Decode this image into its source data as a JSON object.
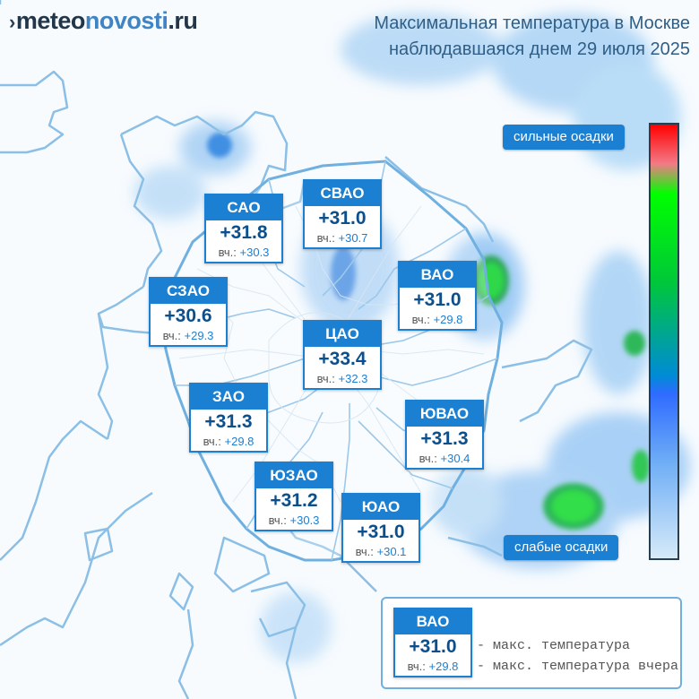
{
  "logo": {
    "mark": "›",
    "part1": "meteo",
    "part2": "novosti",
    "part3": ".ru"
  },
  "title": {
    "line1": "Максимальная температура в Москве",
    "line2": "наблюдавшаяся днем 29 июля 2025"
  },
  "yesterday_label": "вч.:",
  "districts": [
    {
      "name": "САО",
      "temp": "+31.8",
      "yesterday": "+30.3"
    },
    {
      "name": "СВАО",
      "temp": "+31.0",
      "yesterday": "+30.7"
    },
    {
      "name": "ВАО",
      "temp": "+31.0",
      "yesterday": "+29.8"
    },
    {
      "name": "СЗАО",
      "temp": "+30.6",
      "yesterday": "+29.3"
    },
    {
      "name": "ЦАО",
      "temp": "+33.4",
      "yesterday": "+32.3"
    },
    {
      "name": "ЗАО",
      "temp": "+31.3",
      "yesterday": "+29.8"
    },
    {
      "name": "ЮВАО",
      "temp": "+31.3",
      "yesterday": "+30.4"
    },
    {
      "name": "ЮЗАО",
      "temp": "+31.2",
      "yesterday": "+30.3"
    },
    {
      "name": "ЮАО",
      "temp": "+31.0",
      "yesterday": "+30.1"
    }
  ],
  "precip_scale": {
    "high_label": "сильные осадки",
    "low_label": "слабые осадки",
    "colors": [
      "#ff0000",
      "#f27a86",
      "#00ff00",
      "#00c838",
      "#008bd6",
      "#2f6bff",
      "#6faef6",
      "#d6eaf8"
    ]
  },
  "legend": {
    "example": {
      "name": "ВАО",
      "temp": "+31.0",
      "yesterday": "+29.8"
    },
    "max_temp_label": "- макс. температура",
    "max_temp_yesterday_label": "- макс. температура вчера"
  },
  "colors": {
    "accent": "#1b7fd2",
    "temp_text": "#0b4f8c",
    "boundary": "#7fb6e2"
  }
}
